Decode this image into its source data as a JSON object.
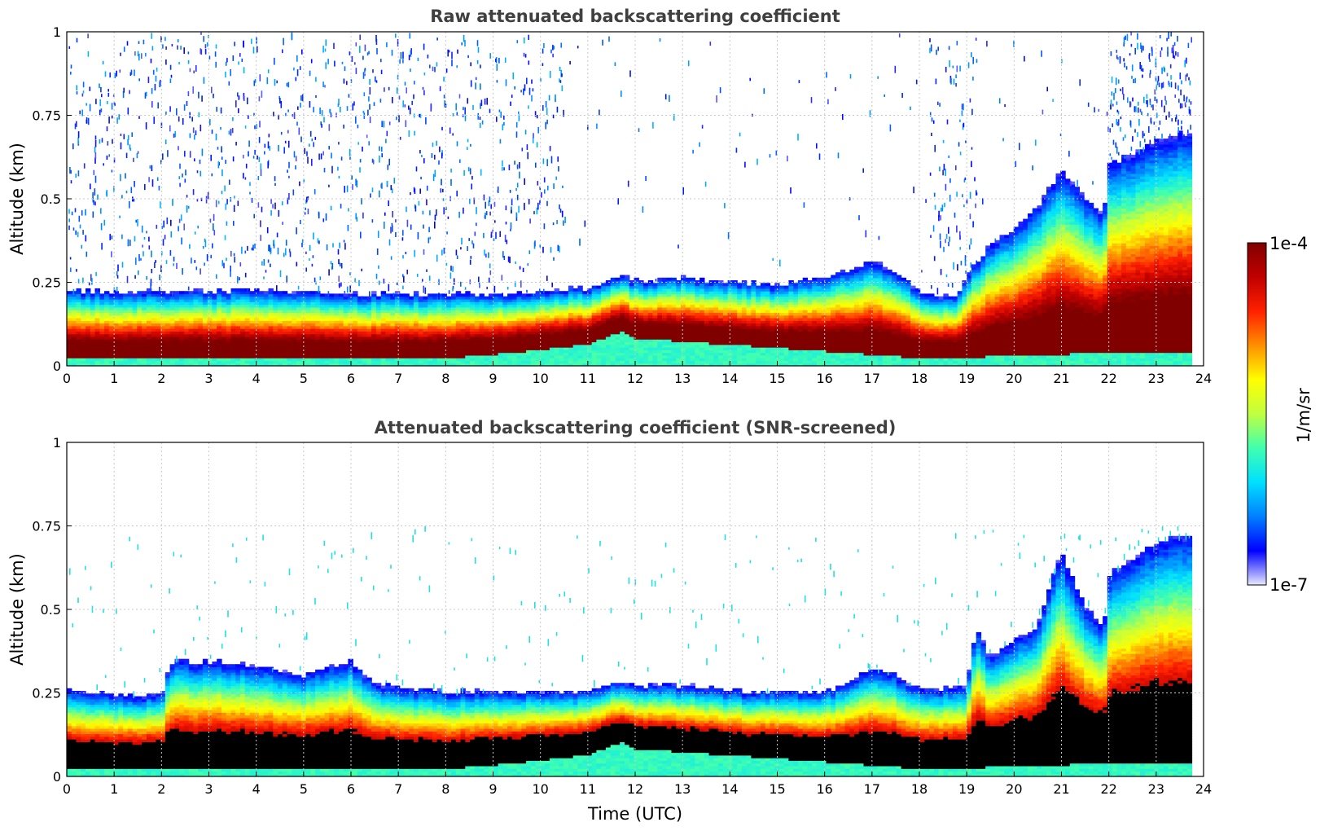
{
  "chart_data": [
    {
      "type": "heatmap",
      "title": "Raw attenuated backscattering coefficient",
      "xlabel": "",
      "ylabel": "Altitude (km)",
      "xlim": [
        0,
        24
      ],
      "ylim": [
        0,
        1
      ],
      "x_ticks": [
        "0",
        "1",
        "2",
        "3",
        "4",
        "5",
        "6",
        "7",
        "8",
        "9",
        "10",
        "11",
        "12",
        "13",
        "14",
        "15",
        "16",
        "17",
        "18",
        "19",
        "20",
        "21",
        "22",
        "23",
        "24"
      ],
      "y_ticks": [
        "0",
        "0.25",
        "0.5",
        "0.75",
        "1"
      ],
      "grid": true,
      "screening": "raw",
      "layer_top_km": [
        [
          0,
          0.22
        ],
        [
          1,
          0.22
        ],
        [
          2,
          0.22
        ],
        [
          3,
          0.22
        ],
        [
          4,
          0.22
        ],
        [
          5,
          0.22
        ],
        [
          6,
          0.21
        ],
        [
          7,
          0.21
        ],
        [
          8,
          0.21
        ],
        [
          9,
          0.21
        ],
        [
          10,
          0.22
        ],
        [
          11,
          0.23
        ],
        [
          11.7,
          0.27
        ],
        [
          12,
          0.25
        ],
        [
          13,
          0.26
        ],
        [
          14,
          0.25
        ],
        [
          15,
          0.24
        ],
        [
          16,
          0.26
        ],
        [
          17,
          0.31
        ],
        [
          17.5,
          0.28
        ],
        [
          18,
          0.22
        ],
        [
          18.8,
          0.2
        ],
        [
          19,
          0.27
        ],
        [
          19.5,
          0.36
        ],
        [
          20,
          0.4
        ],
        [
          20.5,
          0.48
        ],
        [
          21,
          0.58
        ],
        [
          21.5,
          0.5
        ],
        [
          21.9,
          0.45
        ],
        [
          22,
          0.6
        ],
        [
          23,
          0.67
        ],
        [
          23.75,
          0.7
        ]
      ],
      "near_surface_layer_top_km": [
        [
          0,
          0.02
        ],
        [
          8,
          0.02
        ],
        [
          9,
          0.03
        ],
        [
          11,
          0.06
        ],
        [
          11.7,
          0.1
        ],
        [
          12,
          0.08
        ],
        [
          13,
          0.07
        ],
        [
          14,
          0.06
        ],
        [
          15,
          0.05
        ],
        [
          16,
          0.04
        ],
        [
          17,
          0.03
        ],
        [
          18,
          0.02
        ],
        [
          19,
          0.02
        ],
        [
          20,
          0.03
        ],
        [
          21,
          0.03
        ],
        [
          22,
          0.04
        ],
        [
          23.75,
          0.04
        ]
      ],
      "noise_region_top_km": 1.0
    },
    {
      "type": "heatmap",
      "title": "Attenuated backscattering coefficient (SNR-screened)",
      "xlabel": "Time (UTC)",
      "ylabel": "Altitude (km)",
      "xlim": [
        0,
        24
      ],
      "ylim": [
        0,
        1
      ],
      "x_ticks": [
        "0",
        "1",
        "2",
        "3",
        "4",
        "5",
        "6",
        "7",
        "8",
        "9",
        "10",
        "11",
        "12",
        "13",
        "14",
        "15",
        "16",
        "17",
        "18",
        "19",
        "20",
        "21",
        "22",
        "23",
        "24"
      ],
      "y_ticks": [
        "0",
        "0.25",
        "0.5",
        "0.75",
        "1"
      ],
      "grid": true,
      "screening": "snr",
      "layer_top_km": [
        [
          0,
          0.25
        ],
        [
          1,
          0.24
        ],
        [
          2,
          0.24
        ],
        [
          2.2,
          0.34
        ],
        [
          3,
          0.34
        ],
        [
          4,
          0.33
        ],
        [
          5,
          0.3
        ],
        [
          6,
          0.34
        ],
        [
          6.5,
          0.28
        ],
        [
          7,
          0.26
        ],
        [
          8,
          0.25
        ],
        [
          9,
          0.25
        ],
        [
          10,
          0.25
        ],
        [
          11,
          0.25
        ],
        [
          11.7,
          0.28
        ],
        [
          12,
          0.27
        ],
        [
          13,
          0.27
        ],
        [
          14,
          0.25
        ],
        [
          15,
          0.25
        ],
        [
          16,
          0.25
        ],
        [
          17,
          0.32
        ],
        [
          17.5,
          0.3
        ],
        [
          18,
          0.26
        ],
        [
          19,
          0.26
        ],
        [
          19.2,
          0.45
        ],
        [
          19.5,
          0.35
        ],
        [
          20,
          0.4
        ],
        [
          20.5,
          0.45
        ],
        [
          21,
          0.67
        ],
        [
          21.5,
          0.5
        ],
        [
          21.9,
          0.45
        ],
        [
          22,
          0.6
        ],
        [
          23,
          0.7
        ],
        [
          23.75,
          0.72
        ]
      ],
      "near_surface_layer_top_km": [
        [
          0,
          0.02
        ],
        [
          8,
          0.02
        ],
        [
          9,
          0.03
        ],
        [
          11,
          0.06
        ],
        [
          11.7,
          0.1
        ],
        [
          12,
          0.08
        ],
        [
          13,
          0.07
        ],
        [
          14,
          0.06
        ],
        [
          15,
          0.05
        ],
        [
          16,
          0.04
        ],
        [
          17,
          0.03
        ],
        [
          18,
          0.02
        ],
        [
          19,
          0.02
        ],
        [
          20,
          0.03
        ],
        [
          21,
          0.03
        ],
        [
          22,
          0.04
        ],
        [
          23.75,
          0.04
        ]
      ],
      "noise_region_top_km": 0.75
    }
  ],
  "colorbar": {
    "min_label": "1e-7",
    "max_label": "1e-4",
    "unit_label": "1/m/sr",
    "colors": [
      "#e8e8ff",
      "#0000ff",
      "#0080ff",
      "#00e0ff",
      "#40ffb0",
      "#c0ff40",
      "#ffff00",
      "#ff9000",
      "#ff2000",
      "#c00000",
      "#800000"
    ]
  }
}
